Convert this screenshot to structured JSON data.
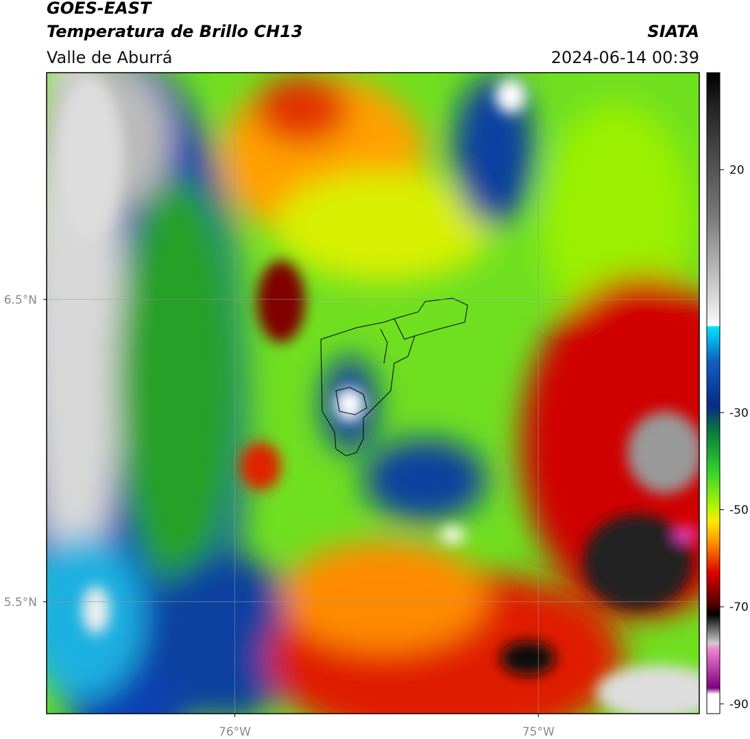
{
  "header": {
    "title": "GOES-EAST",
    "subtitle": "Temperatura de Brillo CH13",
    "region": "Valle de Aburrá",
    "source": "SIATA",
    "datetime": "2024-06-14 00:39"
  },
  "map": {
    "latlim": [
      5.13,
      7.25
    ],
    "lonlim": [
      -76.62,
      -74.47
    ],
    "lat_ticks": [
      {
        "value": 6.5,
        "label": "6.5°N"
      },
      {
        "value": 5.5,
        "label": "5.5°N"
      }
    ],
    "lon_ticks": [
      {
        "value": -76,
        "label": "76°W"
      },
      {
        "value": -75,
        "label": "75°W"
      }
    ],
    "grid": true
  },
  "colorbar": {
    "lim": [
      -92,
      40
    ],
    "ticks": [
      20,
      -30,
      -50,
      -70,
      -90
    ]
  }
}
